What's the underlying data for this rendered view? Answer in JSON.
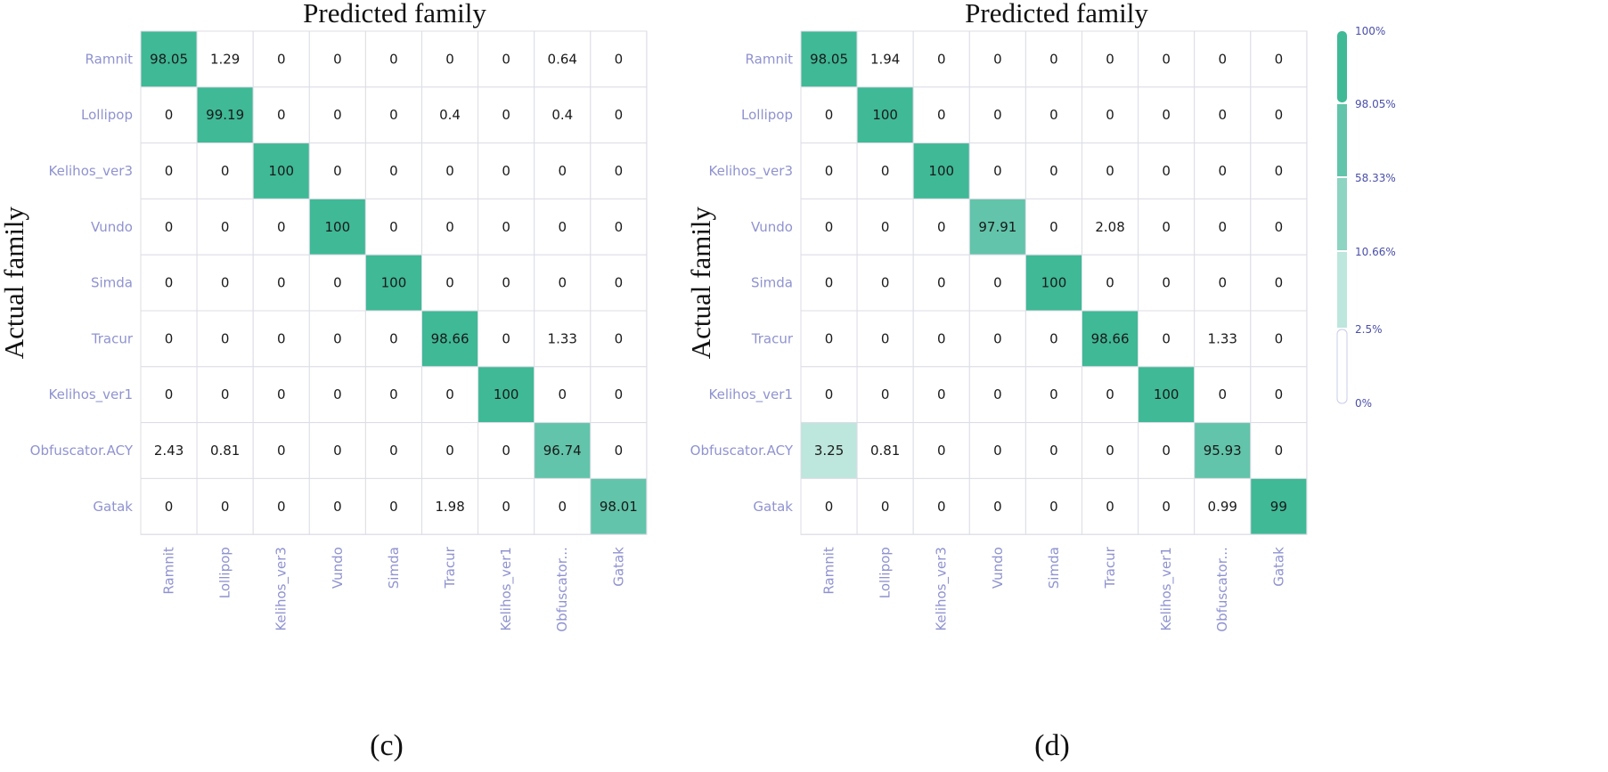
{
  "chart_data": [
    {
      "type": "heatmap",
      "title": "Predicted family",
      "ylabel": "Actual family",
      "caption": "(c)",
      "rows": [
        "Ramnit",
        "Lollipop",
        "Kelihos_ver3",
        "Vundo",
        "Simda",
        "Tracur",
        "Kelihos_ver1",
        "Obfuscator.ACY",
        "Gatak"
      ],
      "columns": [
        "Ramnit",
        "Lollipop",
        "Kelihos_ver3",
        "Vundo",
        "Simda",
        "Tracur",
        "Kelihos_ver1",
        "Obfuscator...",
        "Gatak"
      ],
      "values": [
        [
          "98.05",
          "1.29",
          "0",
          "0",
          "0",
          "0",
          "0",
          "0.64",
          "0"
        ],
        [
          "0",
          "99.19",
          "0",
          "0",
          "0",
          "0.4",
          "0",
          "0.4",
          "0"
        ],
        [
          "0",
          "0",
          "100",
          "0",
          "0",
          "0",
          "0",
          "0",
          "0"
        ],
        [
          "0",
          "0",
          "0",
          "100",
          "0",
          "0",
          "0",
          "0",
          "0"
        ],
        [
          "0",
          "0",
          "0",
          "0",
          "100",
          "0",
          "0",
          "0",
          "0"
        ],
        [
          "0",
          "0",
          "0",
          "0",
          "0",
          "98.66",
          "0",
          "1.33",
          "0"
        ],
        [
          "0",
          "0",
          "0",
          "0",
          "0",
          "0",
          "100",
          "0",
          "0"
        ],
        [
          "2.43",
          "0.81",
          "0",
          "0",
          "0",
          "0",
          "0",
          "96.74",
          "0"
        ],
        [
          "0",
          "0",
          "0",
          "0",
          "0",
          "1.98",
          "0",
          "0",
          "98.01"
        ]
      ]
    },
    {
      "type": "heatmap",
      "title": "Predicted family",
      "ylabel": "Actual family",
      "caption": "(d)",
      "rows": [
        "Ramnit",
        "Lollipop",
        "Kelihos_ver3",
        "Vundo",
        "Simda",
        "Tracur",
        "Kelihos_ver1",
        "Obfuscator.ACY",
        "Gatak"
      ],
      "columns": [
        "Ramnit",
        "Lollipop",
        "Kelihos_ver3",
        "Vundo",
        "Simda",
        "Tracur",
        "Kelihos_ver1",
        "Obfuscator...",
        "Gatak"
      ],
      "values": [
        [
          "98.05",
          "1.94",
          "0",
          "0",
          "0",
          "0",
          "0",
          "0",
          "0"
        ],
        [
          "0",
          "100",
          "0",
          "0",
          "0",
          "0",
          "0",
          "0",
          "0"
        ],
        [
          "0",
          "0",
          "100",
          "0",
          "0",
          "0",
          "0",
          "0",
          "0"
        ],
        [
          "0",
          "0",
          "0",
          "97.91",
          "0",
          "2.08",
          "0",
          "0",
          "0"
        ],
        [
          "0",
          "0",
          "0",
          "0",
          "100",
          "0",
          "0",
          "0",
          "0"
        ],
        [
          "0",
          "0",
          "0",
          "0",
          "0",
          "98.66",
          "0",
          "1.33",
          "0"
        ],
        [
          "0",
          "0",
          "0",
          "0",
          "0",
          "0",
          "100",
          "0",
          "0"
        ],
        [
          "3.25",
          "0.81",
          "0",
          "0",
          "0",
          "0",
          "0",
          "95.93",
          "0"
        ],
        [
          "0",
          "0",
          "0",
          "0",
          "0",
          "0",
          "0",
          "0.99",
          "99"
        ]
      ]
    }
  ],
  "legend": {
    "ticks": [
      "100%",
      "98.05%",
      "58.33%",
      "10.66%",
      "2.5%",
      "0%"
    ],
    "bands": [
      {
        "min": 98.05,
        "max": 100,
        "color": "#3fb996"
      },
      {
        "min": 58.33,
        "max": 98.05,
        "color": "#62c4aa"
      },
      {
        "min": 10.66,
        "max": 58.33,
        "color": "#8dd4c2"
      },
      {
        "min": 2.5,
        "max": 10.66,
        "color": "#bde6dc"
      },
      {
        "min": 0,
        "max": 2.5,
        "color": "#ffffff"
      }
    ]
  },
  "colors": {
    "grid": "#dcdde6",
    "label": "#8f93cf",
    "legend_text": "#4a4fa8",
    "legend_border": "#c9cbe8"
  }
}
